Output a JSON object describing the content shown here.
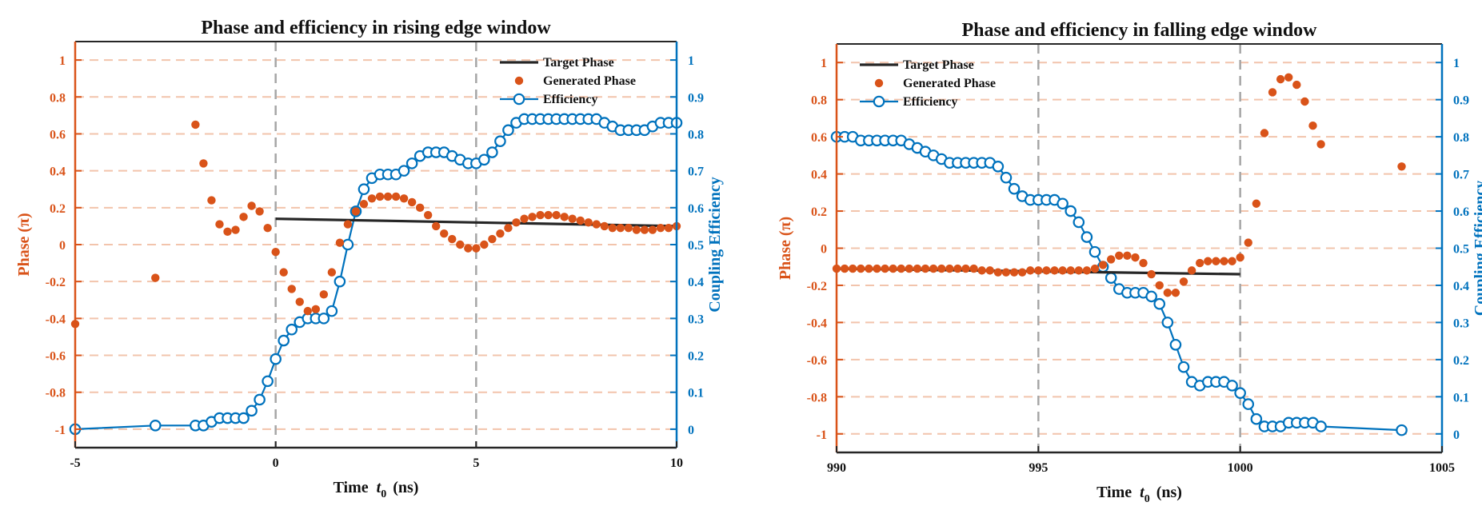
{
  "colors": {
    "left_axis": "#D95319",
    "right_axis": "#0072BD",
    "target": "#262626",
    "dashed_grid": "#F2C4AC",
    "vline": "#A6A6A6"
  },
  "chart_data": [
    {
      "type": "line",
      "title": "Phase and efficiency in rising edge window",
      "xlabel_main": "Time",
      "xlabel_var": "t",
      "xlabel_sub": "0",
      "xlabel_unit": "(ns)",
      "ylabel_left": "Phase  (π)",
      "ylabel_right": "Coupling Efficiency",
      "xlim": [
        -5,
        10
      ],
      "ylim_left": [
        -1.1,
        1.1
      ],
      "ylim_right": [
        -0.05,
        1.05
      ],
      "xticks": [
        -5,
        0,
        5,
        10
      ],
      "xtick_labels": [
        "-5",
        "0",
        "5",
        "10"
      ],
      "yticks_left": [
        -1,
        -0.8,
        -0.6,
        -0.4,
        -0.2,
        0,
        0.2,
        0.4,
        0.6,
        0.8,
        1
      ],
      "ytick_labels_left": [
        "-1",
        "-0.8",
        "-0.6",
        "-0.4",
        "-0.2",
        "0",
        "0.2",
        "0.4",
        "0.6",
        "0.8",
        "1"
      ],
      "yticks_right": [
        0,
        0.1,
        0.2,
        0.3,
        0.4,
        0.5,
        0.6,
        0.7,
        0.8,
        0.9,
        1
      ],
      "ytick_labels_right": [
        "0",
        "0.1",
        "0.2",
        "0.3",
        "0.4",
        "0.5",
        "0.6",
        "0.7",
        "0.8",
        "0.9",
        "1"
      ],
      "vlines": [
        0,
        5
      ],
      "legend_position": "top-right",
      "legend": [
        "Target Phase",
        "Generated Phase",
        "Efficiency"
      ],
      "target_phase": {
        "name": "Target Phase",
        "x": [
          0,
          10
        ],
        "y": [
          0.14,
          0.1
        ]
      },
      "generated_phase": {
        "name": "Generated Phase",
        "x": [
          -5,
          -3,
          -2,
          -1.8,
          -1.6,
          -1.4,
          -1.2,
          -1,
          -0.8,
          -0.6,
          -0.4,
          -0.2,
          0,
          0.2,
          0.4,
          0.6,
          0.8,
          1,
          1.2,
          1.4,
          1.6,
          1.8,
          2,
          2.2,
          2.4,
          2.6,
          2.8,
          3,
          3.2,
          3.4,
          3.6,
          3.8,
          4,
          4.2,
          4.4,
          4.6,
          4.8,
          5,
          5.2,
          5.4,
          5.6,
          5.8,
          6,
          6.2,
          6.4,
          6.6,
          6.8,
          7,
          7.2,
          7.4,
          7.6,
          7.8,
          8,
          8.2,
          8.4,
          8.6,
          8.8,
          9,
          9.2,
          9.4,
          9.6,
          9.8,
          10
        ],
        "y": [
          -0.43,
          -0.18,
          0.65,
          0.44,
          0.24,
          0.11,
          0.07,
          0.08,
          0.15,
          0.21,
          0.18,
          0.09,
          -0.04,
          -0.15,
          -0.24,
          -0.31,
          -0.36,
          -0.35,
          -0.27,
          -0.15,
          0.01,
          0.11,
          0.18,
          0.22,
          0.25,
          0.26,
          0.26,
          0.26,
          0.25,
          0.23,
          0.2,
          0.16,
          0.1,
          0.06,
          0.03,
          0,
          -0.02,
          -0.02,
          0,
          0.03,
          0.06,
          0.09,
          0.12,
          0.14,
          0.15,
          0.16,
          0.16,
          0.16,
          0.15,
          0.14,
          0.13,
          0.12,
          0.11,
          0.1,
          0.09,
          0.09,
          0.09,
          0.08,
          0.08,
          0.08,
          0.09,
          0.09,
          0.1
        ]
      },
      "efficiency": {
        "name": "Efficiency",
        "x": [
          -5,
          -3,
          -2,
          -1.8,
          -1.6,
          -1.4,
          -1.2,
          -1,
          -0.8,
          -0.6,
          -0.4,
          -0.2,
          0,
          0.2,
          0.4,
          0.6,
          0.8,
          1,
          1.2,
          1.4,
          1.6,
          1.8,
          2,
          2.2,
          2.4,
          2.6,
          2.8,
          3,
          3.2,
          3.4,
          3.6,
          3.8,
          4,
          4.2,
          4.4,
          4.6,
          4.8,
          5,
          5.2,
          5.4,
          5.6,
          5.8,
          6,
          6.2,
          6.4,
          6.6,
          6.8,
          7,
          7.2,
          7.4,
          7.6,
          7.8,
          8,
          8.2,
          8.4,
          8.6,
          8.8,
          9,
          9.2,
          9.4,
          9.6,
          9.8,
          10
        ],
        "y": [
          0,
          0.01,
          0.01,
          0.01,
          0.02,
          0.03,
          0.03,
          0.03,
          0.03,
          0.05,
          0.08,
          0.13,
          0.19,
          0.24,
          0.27,
          0.29,
          0.3,
          0.3,
          0.3,
          0.32,
          0.4,
          0.5,
          0.59,
          0.65,
          0.68,
          0.69,
          0.69,
          0.69,
          0.7,
          0.72,
          0.74,
          0.75,
          0.75,
          0.75,
          0.74,
          0.73,
          0.72,
          0.72,
          0.73,
          0.75,
          0.78,
          0.81,
          0.83,
          0.84,
          0.84,
          0.84,
          0.84,
          0.84,
          0.84,
          0.84,
          0.84,
          0.84,
          0.84,
          0.83,
          0.82,
          0.81,
          0.81,
          0.81,
          0.81,
          0.82,
          0.83,
          0.83,
          0.83
        ]
      }
    },
    {
      "type": "line",
      "title": "Phase and efficiency in falling edge window",
      "xlabel_main": "Time",
      "xlabel_var": "t",
      "xlabel_sub": "0",
      "xlabel_unit": "(ns)",
      "ylabel_left": "Phase  (π)",
      "ylabel_right": "Coupling Efficiency",
      "xlim": [
        990,
        1005
      ],
      "ylim_left": [
        -1.1,
        1.1
      ],
      "ylim_right": [
        -0.05,
        1.05
      ],
      "xticks": [
        990,
        995,
        1000,
        1005
      ],
      "xtick_labels": [
        "990",
        "995",
        "1000",
        "1005"
      ],
      "yticks_left": [
        -1,
        -0.8,
        -0.6,
        -0.4,
        -0.2,
        0,
        0.2,
        0.4,
        0.6,
        0.8,
        1
      ],
      "ytick_labels_left": [
        "-1",
        "-0.8",
        "-0.6",
        "-0.4",
        "-0.2",
        "0",
        "0.2",
        "0.4",
        "0.6",
        "0.8",
        "1"
      ],
      "yticks_right": [
        0,
        0.1,
        0.2,
        0.3,
        0.4,
        0.5,
        0.6,
        0.7,
        0.8,
        0.9,
        1
      ],
      "ytick_labels_right": [
        "0",
        "0.1",
        "0.2",
        "0.3",
        "0.4",
        "0.5",
        "0.6",
        "0.7",
        "0.8",
        "0.9",
        "1"
      ],
      "vlines": [
        995,
        1000
      ],
      "legend_position": "top-left",
      "legend": [
        "Target Phase",
        "Generated Phase",
        "Efficiency"
      ],
      "target_phase": {
        "name": "Target Phase",
        "x": [
          990,
          1000
        ],
        "y": [
          -0.11,
          -0.14
        ]
      },
      "generated_phase": {
        "name": "Generated Phase",
        "x": [
          990,
          990.2,
          990.4,
          990.6,
          990.8,
          991,
          991.2,
          991.4,
          991.6,
          991.8,
          992,
          992.2,
          992.4,
          992.6,
          992.8,
          993,
          993.2,
          993.4,
          993.6,
          993.8,
          994,
          994.2,
          994.4,
          994.6,
          994.8,
          995,
          995.2,
          995.4,
          995.6,
          995.8,
          996,
          996.2,
          996.4,
          996.6,
          996.8,
          997,
          997.2,
          997.4,
          997.6,
          997.8,
          998,
          998.2,
          998.4,
          998.6,
          998.8,
          999,
          999.2,
          999.4,
          999.6,
          999.8,
          1000,
          1000.2,
          1000.4,
          1000.6,
          1000.8,
          1001,
          1001.2,
          1001.4,
          1001.6,
          1001.8,
          1002,
          1004
        ],
        "y": [
          -0.11,
          -0.11,
          -0.11,
          -0.11,
          -0.11,
          -0.11,
          -0.11,
          -0.11,
          -0.11,
          -0.11,
          -0.11,
          -0.11,
          -0.11,
          -0.11,
          -0.11,
          -0.11,
          -0.11,
          -0.11,
          -0.12,
          -0.12,
          -0.13,
          -0.13,
          -0.13,
          -0.13,
          -0.12,
          -0.12,
          -0.12,
          -0.12,
          -0.12,
          -0.12,
          -0.12,
          -0.12,
          -0.11,
          -0.09,
          -0.06,
          -0.04,
          -0.04,
          -0.05,
          -0.08,
          -0.14,
          -0.2,
          -0.24,
          -0.24,
          -0.18,
          -0.12,
          -0.08,
          -0.07,
          -0.07,
          -0.07,
          -0.07,
          -0.05,
          0.03,
          0.24,
          0.62,
          0.84,
          0.91,
          0.92,
          0.88,
          0.79,
          0.66,
          0.56,
          0.44
        ]
      },
      "efficiency": {
        "name": "Efficiency",
        "x": [
          990,
          990.2,
          990.4,
          990.6,
          990.8,
          991,
          991.2,
          991.4,
          991.6,
          991.8,
          992,
          992.2,
          992.4,
          992.6,
          992.8,
          993,
          993.2,
          993.4,
          993.6,
          993.8,
          994,
          994.2,
          994.4,
          994.6,
          994.8,
          995,
          995.2,
          995.4,
          995.6,
          995.8,
          996,
          996.2,
          996.4,
          996.6,
          996.8,
          997,
          997.2,
          997.4,
          997.6,
          997.8,
          998,
          998.2,
          998.4,
          998.6,
          998.8,
          999,
          999.2,
          999.4,
          999.6,
          999.8,
          1000,
          1000.2,
          1000.4,
          1000.6,
          1000.8,
          1001,
          1001.2,
          1001.4,
          1001.6,
          1001.8,
          1002,
          1004
        ],
        "y": [
          0.8,
          0.8,
          0.8,
          0.79,
          0.79,
          0.79,
          0.79,
          0.79,
          0.79,
          0.78,
          0.77,
          0.76,
          0.75,
          0.74,
          0.73,
          0.73,
          0.73,
          0.73,
          0.73,
          0.73,
          0.72,
          0.69,
          0.66,
          0.64,
          0.63,
          0.63,
          0.63,
          0.63,
          0.62,
          0.6,
          0.57,
          0.53,
          0.49,
          0.45,
          0.42,
          0.39,
          0.38,
          0.38,
          0.38,
          0.37,
          0.35,
          0.3,
          0.24,
          0.18,
          0.14,
          0.13,
          0.14,
          0.14,
          0.14,
          0.13,
          0.11,
          0.08,
          0.04,
          0.02,
          0.02,
          0.02,
          0.03,
          0.03,
          0.03,
          0.03,
          0.02,
          0.01
        ]
      }
    }
  ]
}
